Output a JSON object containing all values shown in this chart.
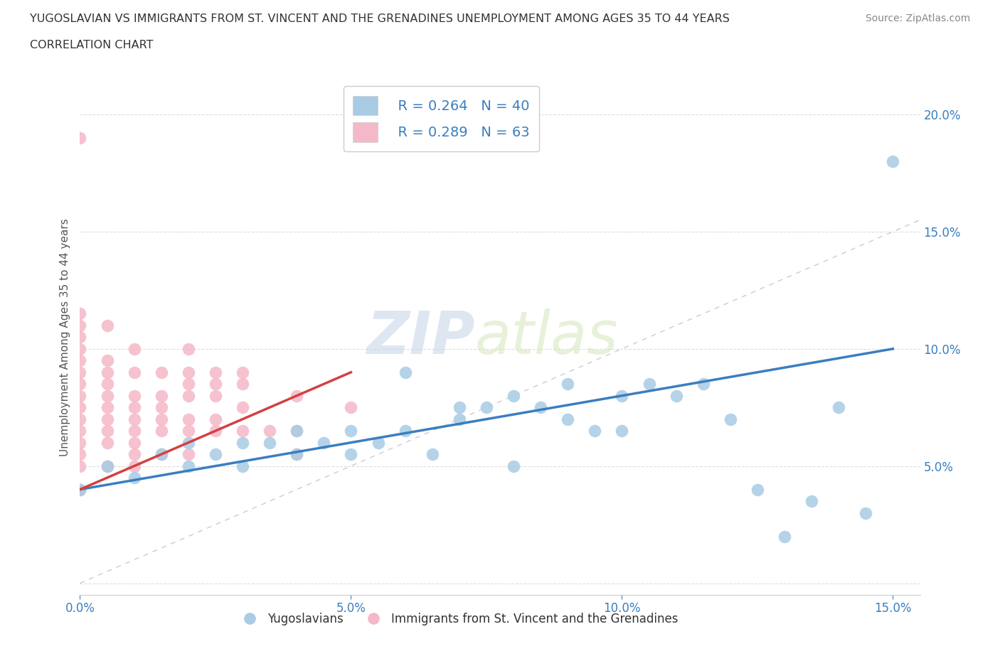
{
  "title_line1": "YUGOSLAVIAN VS IMMIGRANTS FROM ST. VINCENT AND THE GRENADINES UNEMPLOYMENT AMONG AGES 35 TO 44 YEARS",
  "title_line2": "CORRELATION CHART",
  "source": "Source: ZipAtlas.com",
  "ylabel": "Unemployment Among Ages 35 to 44 years",
  "xlim": [
    0.0,
    0.155
  ],
  "ylim": [
    -0.005,
    0.215
  ],
  "xticks": [
    0.0,
    0.05,
    0.1,
    0.15
  ],
  "yticks": [
    0.0,
    0.05,
    0.1,
    0.15,
    0.2
  ],
  "blue_color": "#a8cce4",
  "pink_color": "#f5b8c8",
  "blue_line_color": "#3a7ebf",
  "pink_line_color": "#d44040",
  "diag_line_color": "#cccccc",
  "watermark_zip": "ZIP",
  "watermark_atlas": "atlas",
  "legend_R1": "R = 0.264",
  "legend_N1": "N = 40",
  "legend_R2": "R = 0.289",
  "legend_N2": "N = 63",
  "legend_label1": "Yugoslavians",
  "legend_label2": "Immigrants from St. Vincent and the Grenadines",
  "blue_x": [
    0.0,
    0.005,
    0.01,
    0.015,
    0.02,
    0.02,
    0.025,
    0.03,
    0.03,
    0.035,
    0.04,
    0.04,
    0.045,
    0.05,
    0.05,
    0.055,
    0.06,
    0.06,
    0.065,
    0.07,
    0.07,
    0.075,
    0.08,
    0.08,
    0.085,
    0.09,
    0.09,
    0.095,
    0.1,
    0.1,
    0.105,
    0.11,
    0.115,
    0.12,
    0.125,
    0.13,
    0.135,
    0.14,
    0.145,
    0.15
  ],
  "blue_y": [
    0.04,
    0.05,
    0.045,
    0.055,
    0.05,
    0.06,
    0.055,
    0.05,
    0.06,
    0.06,
    0.055,
    0.065,
    0.06,
    0.065,
    0.055,
    0.06,
    0.065,
    0.09,
    0.055,
    0.07,
    0.075,
    0.075,
    0.08,
    0.05,
    0.075,
    0.07,
    0.085,
    0.065,
    0.08,
    0.065,
    0.085,
    0.08,
    0.085,
    0.07,
    0.04,
    0.02,
    0.035,
    0.075,
    0.03,
    0.18
  ],
  "pink_x": [
    0.0,
    0.0,
    0.0,
    0.0,
    0.0,
    0.0,
    0.0,
    0.0,
    0.0,
    0.0,
    0.0,
    0.0,
    0.0,
    0.0,
    0.0,
    0.0,
    0.0,
    0.005,
    0.005,
    0.005,
    0.005,
    0.005,
    0.005,
    0.005,
    0.005,
    0.005,
    0.005,
    0.01,
    0.01,
    0.01,
    0.01,
    0.01,
    0.01,
    0.01,
    0.01,
    0.01,
    0.015,
    0.015,
    0.015,
    0.015,
    0.015,
    0.015,
    0.02,
    0.02,
    0.02,
    0.02,
    0.02,
    0.02,
    0.02,
    0.025,
    0.025,
    0.025,
    0.025,
    0.025,
    0.03,
    0.03,
    0.03,
    0.03,
    0.035,
    0.04,
    0.04,
    0.04,
    0.05
  ],
  "pink_y": [
    0.04,
    0.05,
    0.055,
    0.06,
    0.065,
    0.07,
    0.075,
    0.08,
    0.085,
    0.09,
    0.095,
    0.1,
    0.105,
    0.11,
    0.115,
    0.19,
    0.04,
    0.05,
    0.06,
    0.065,
    0.07,
    0.075,
    0.08,
    0.085,
    0.09,
    0.095,
    0.11,
    0.05,
    0.055,
    0.06,
    0.065,
    0.07,
    0.075,
    0.08,
    0.09,
    0.1,
    0.055,
    0.065,
    0.07,
    0.075,
    0.08,
    0.09,
    0.055,
    0.065,
    0.07,
    0.08,
    0.085,
    0.09,
    0.1,
    0.065,
    0.07,
    0.08,
    0.085,
    0.09,
    0.065,
    0.075,
    0.085,
    0.09,
    0.065,
    0.055,
    0.065,
    0.08,
    0.075
  ]
}
